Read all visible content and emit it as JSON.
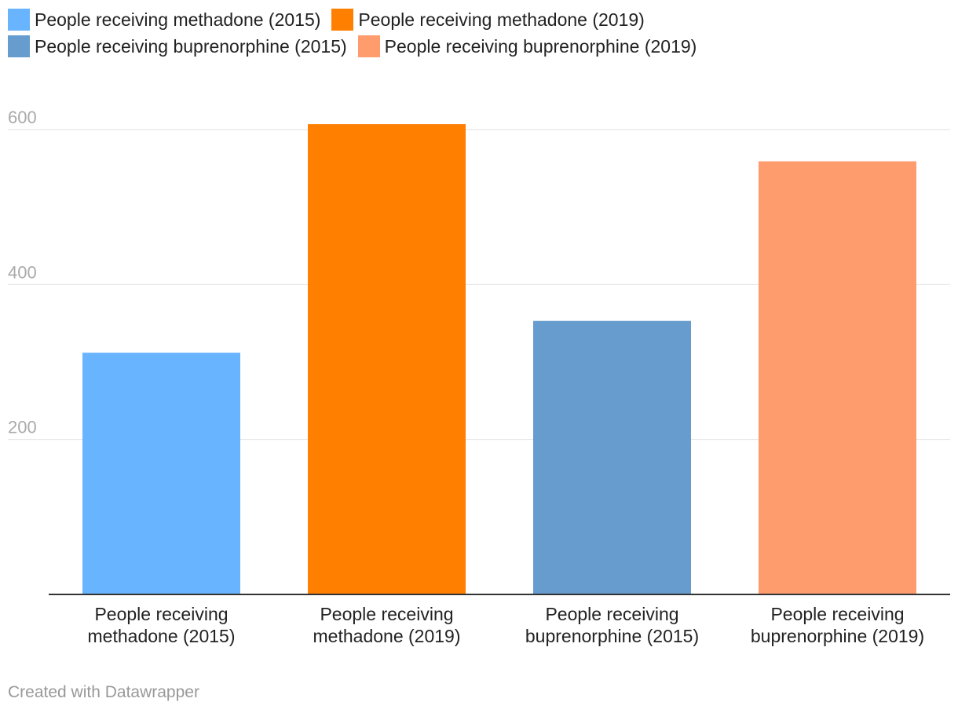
{
  "chart_data": {
    "type": "bar",
    "categories": [
      "People receiving methadone (2015)",
      "People receiving methadone (2019)",
      "People receiving buprenorphine (2015)",
      "People receiving buprenorphine (2019)"
    ],
    "category_lines": [
      [
        "People receiving",
        "methadone (2015)"
      ],
      [
        "People receiving",
        "methadone (2019)"
      ],
      [
        "People receiving",
        "buprenorphine (2015)"
      ],
      [
        "People receiving",
        "buprenorphine (2019)"
      ]
    ],
    "values": [
      312,
      607,
      353,
      559
    ],
    "colors": [
      "#68b4ff",
      "#ff7f00",
      "#679cce",
      "#ff9c6e"
    ],
    "legend": [
      {
        "label": "People receiving methadone (2015)",
        "color": "#68b4ff"
      },
      {
        "label": "People receiving methadone (2019)",
        "color": "#ff7f00"
      },
      {
        "label": "People receiving buprenorphine (2015)",
        "color": "#679cce"
      },
      {
        "label": "People receiving buprenorphine (2019)",
        "color": "#ff9c6e"
      }
    ],
    "legend_placement": "top",
    "yticks": [
      200,
      400,
      600
    ],
    "ylim": [
      0,
      650
    ],
    "grid": true,
    "title": "",
    "xlabel": "",
    "ylabel": ""
  },
  "credit": "Created with Datawrapper"
}
